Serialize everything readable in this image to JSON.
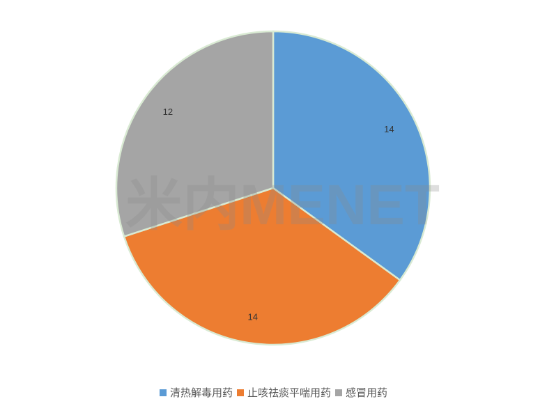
{
  "chart_data": {
    "type": "pie",
    "categories": [
      "清热解毒用药",
      "止咳祛痰平喘用药",
      "感冒用药"
    ],
    "values": [
      14,
      14,
      12
    ],
    "colors": [
      "#5b9bd5",
      "#ed7d31",
      "#a5a5a5"
    ],
    "data_labels": [
      "14",
      "14",
      "12"
    ],
    "title": "",
    "legend_position": "bottom",
    "start_angle": "top, clockwise",
    "slice_border_color": "#d9ead3"
  },
  "watermark": "米内MENET"
}
